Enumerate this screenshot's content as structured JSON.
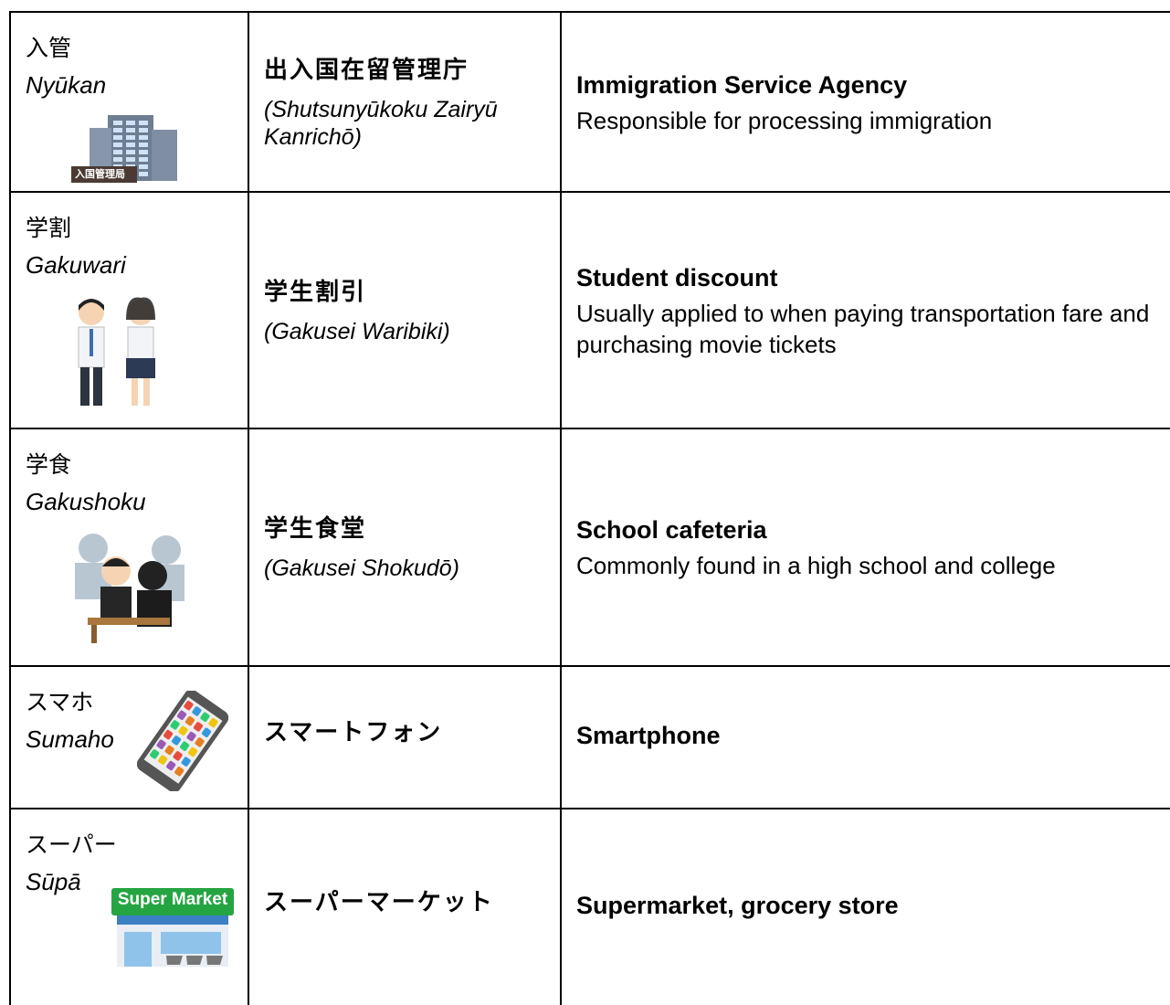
{
  "table": {
    "rows": [
      {
        "term": "入管",
        "romaji": "Nyūkan",
        "icon_label": "入国管理局",
        "full": "出入国在留管理庁",
        "reading": "(Shutsunyūkoku Zairyū Kanrichō)",
        "english": "Immigration Service Agency",
        "description": "Responsible for processing immigration"
      },
      {
        "term": "学割",
        "romaji": "Gakuwari",
        "full": "学生割引",
        "reading": "(Gakusei Waribiki)",
        "english": "Student discount",
        "description": "Usually applied to when paying transportation fare and purchasing movie tickets"
      },
      {
        "term": "学食",
        "romaji": "Gakushoku",
        "full": "学生食堂",
        "reading": "(Gakusei Shokudō)",
        "english": "School cafeteria",
        "description": "Commonly found in a high school and college"
      },
      {
        "term": "スマホ",
        "romaji": "Sumaho",
        "full": "スマートフォン",
        "english": "Smartphone"
      },
      {
        "term": "スーパー",
        "romaji": "Sūpā",
        "icon_label": "Super Market",
        "full": "スーパーマーケット",
        "english": "Supermarket, grocery store"
      }
    ]
  }
}
